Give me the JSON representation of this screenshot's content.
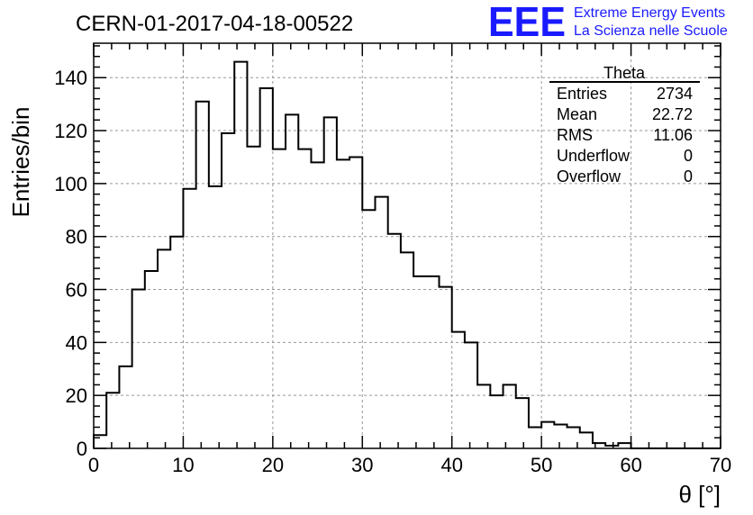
{
  "header": {
    "run_title": "CERN-01-2017-04-18-00522",
    "logo_text": "EEE",
    "logo_line1": "Extreme Energy Events",
    "logo_line2": "La Scienza nelle Scuole",
    "logo_color": "#1a1aff"
  },
  "stats": {
    "title": "Theta",
    "rows": [
      {
        "label": "Entries",
        "value": "2734"
      },
      {
        "label": "Mean",
        "value": "22.72"
      },
      {
        "label": "RMS",
        "value": "11.06"
      },
      {
        "label": "Underflow",
        "value": "0"
      },
      {
        "label": "Overflow",
        "value": "0"
      }
    ]
  },
  "chart_data": {
    "type": "histogram",
    "xlabel": "θ [°]",
    "ylabel": "Entries/bin",
    "xlim": [
      0,
      70
    ],
    "ylim": [
      0,
      153
    ],
    "bin_width": 1.4286,
    "x_ticks": [
      0,
      10,
      20,
      30,
      40,
      50,
      60,
      70
    ],
    "y_ticks": [
      0,
      20,
      40,
      60,
      80,
      100,
      120,
      140
    ],
    "grid": true,
    "values": [
      5,
      21,
      31,
      60,
      67,
      75,
      80,
      98,
      131,
      99,
      119,
      146,
      114,
      136,
      113,
      126,
      113,
      108,
      125,
      109,
      110,
      90,
      95,
      81,
      74,
      65,
      65,
      61,
      44,
      40,
      24,
      20,
      24,
      19,
      8,
      10,
      9,
      8,
      6,
      2,
      1,
      2,
      0,
      0,
      0,
      0,
      0,
      0,
      0
    ]
  }
}
